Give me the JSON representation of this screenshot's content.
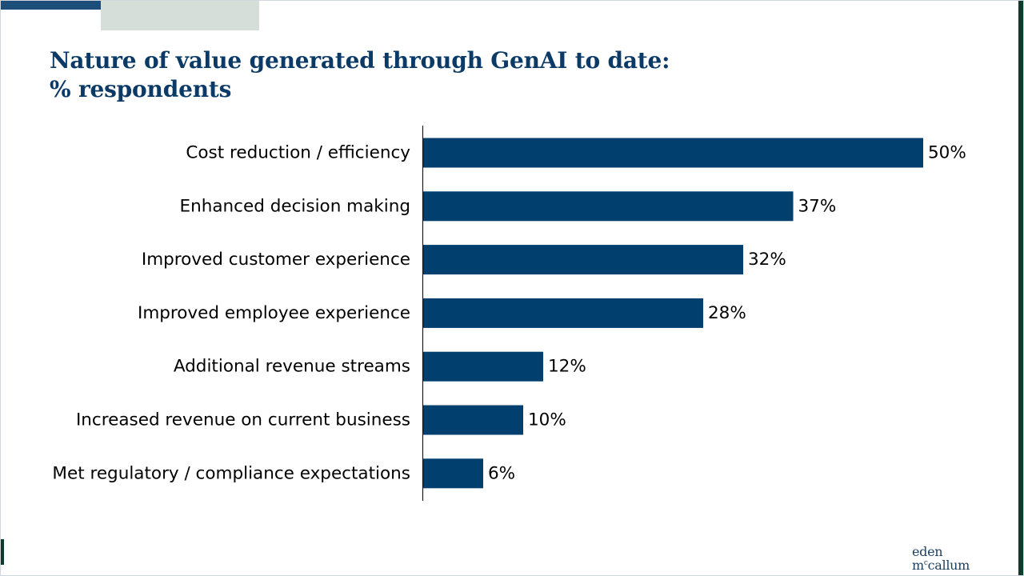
{
  "colors": {
    "bar": "#003f6e",
    "title": "#0c3a66",
    "accent_bar": "#1d4e7a",
    "accent_block": "#d6deda",
    "right_edge": "#0d3b2c",
    "left_mark": "#0d3b2c"
  },
  "title": {
    "line1": "Nature of value generated through GenAI to date:",
    "line2": "% respondents"
  },
  "chart_data": {
    "type": "bar",
    "orientation": "horizontal",
    "categories": [
      "Cost reduction / efficiency",
      "Enhanced decision making",
      "Improved customer experience",
      "Improved employee experience",
      "Additional revenue streams",
      "Increased revenue on current business",
      "Met regulatory / compliance expectations"
    ],
    "values": [
      50,
      37,
      32,
      28,
      12,
      10,
      6
    ],
    "value_labels": [
      "50%",
      "37%",
      "32%",
      "28%",
      "12%",
      "10%",
      "6%"
    ],
    "unit": "%",
    "xlim": [
      0,
      50
    ],
    "grid": false,
    "legend": "none"
  },
  "logo": {
    "line1": "eden",
    "line2_prefix": "m",
    "line2_sup": "c",
    "line2_rest": "callum"
  }
}
